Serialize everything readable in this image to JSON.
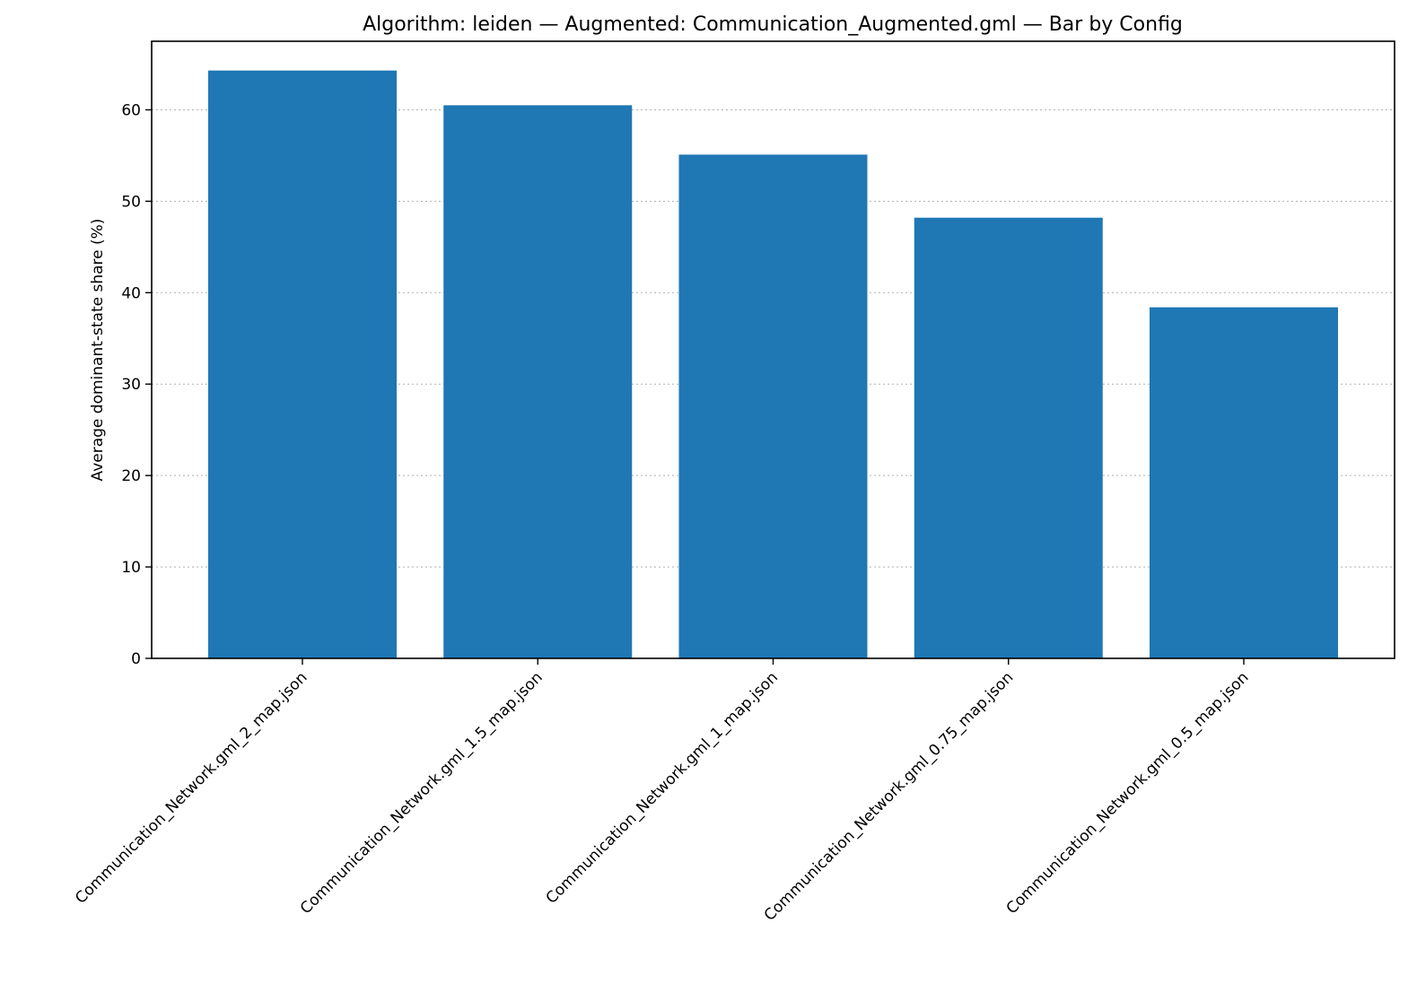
{
  "chart_data": {
    "type": "bar",
    "title": "Algorithm: leiden — Augmented: Communication_Augmented.gml — Bar by Config",
    "xlabel": "",
    "ylabel": "Average dominant-state share (%)",
    "categories": [
      "Communication_Network.gml_2_map.json",
      "Communication_Network.gml_1.5_map.json",
      "Communication_Network.gml_1_map.json",
      "Communication_Network.gml_0.75_map.json",
      "Communication_Network.gml_0.5_map.json"
    ],
    "values": [
      64.3,
      60.5,
      55.1,
      48.2,
      38.4
    ],
    "ylim": [
      0,
      67.5
    ],
    "yticks": [
      0,
      10,
      20,
      30,
      40,
      50,
      60
    ],
    "grid": "horizontal-dotted",
    "bar_color": "#1f77b4",
    "grid_color": "#b0b0b0"
  }
}
